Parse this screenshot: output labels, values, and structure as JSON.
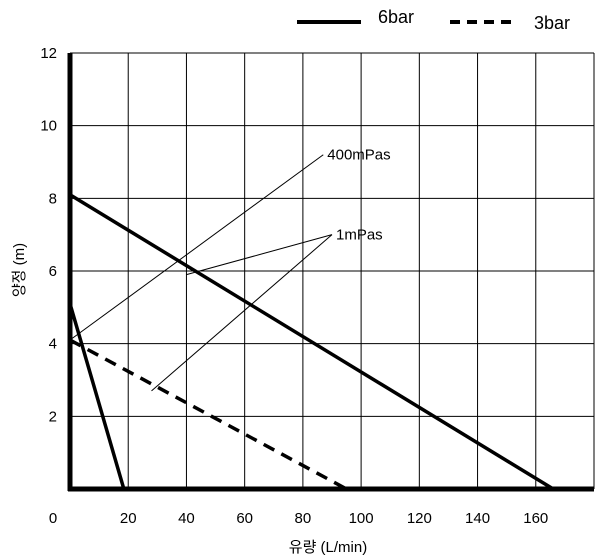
{
  "chart_data": {
    "type": "line",
    "xlabel": "유량 (L/min)",
    "ylabel": "양정 (m)",
    "xlim": [
      0,
      180
    ],
    "ylim": [
      0,
      12
    ],
    "x_ticks": [
      "0",
      "20",
      "40",
      "60",
      "80",
      "100",
      "120",
      "140",
      "160"
    ],
    "y_ticks": [
      "2",
      "4",
      "6",
      "8",
      "10",
      "12"
    ],
    "grid": true,
    "legend_position": "top-right",
    "legend": [
      {
        "label": "6bar",
        "style": "solid"
      },
      {
        "label": "3bar",
        "style": "dashed"
      }
    ],
    "series": [
      {
        "legend": "6bar",
        "viscosity": "1mPas",
        "style": "solid",
        "points": [
          [
            0,
            8.1
          ],
          [
            166,
            0
          ]
        ]
      },
      {
        "legend": "3bar",
        "viscosity": "1mPas",
        "style": "dashed",
        "points": [
          [
            0,
            4.1
          ],
          [
            95,
            0
          ]
        ]
      },
      {
        "legend": "6bar",
        "viscosity": "400mPas",
        "style": "solid",
        "points": [
          [
            0,
            5.1
          ],
          [
            18.5,
            0
          ]
        ]
      }
    ],
    "annotations": [
      {
        "text": "400mPas",
        "anchor": [
          87,
          9.2
        ],
        "targets": [
          [
            0,
            4.1
          ]
        ]
      },
      {
        "text": "1mPas",
        "anchor": [
          90,
          7.0
        ],
        "targets": [
          [
            40,
            5.9
          ],
          [
            28,
            2.7
          ]
        ]
      }
    ]
  }
}
